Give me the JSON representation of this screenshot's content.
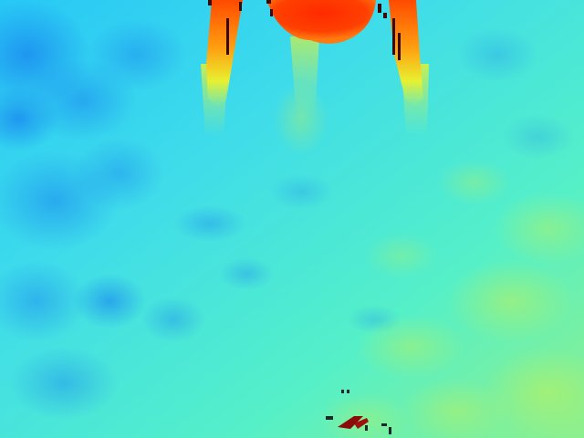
{
  "image": {
    "kind": "thermal-colormap",
    "subject_description": "",
    "palette": {
      "cold": "#1e9cff",
      "cool": "#33d8f0",
      "mid": "#55f0c0",
      "warm": "#c8f050",
      "yellow": "#f0e030",
      "orange": "#ff8c10",
      "hot": "#ff3a00",
      "artifact": "#8b0a0a"
    }
  }
}
